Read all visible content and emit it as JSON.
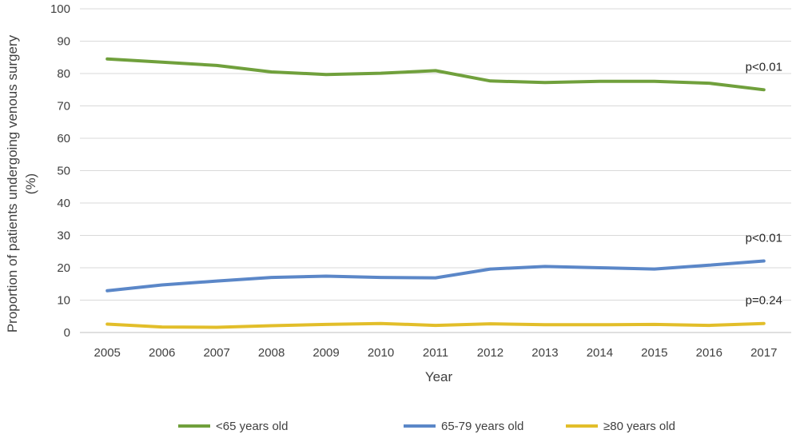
{
  "chart_data": {
    "type": "line",
    "title": "",
    "xlabel": "Year",
    "ylabel": "Proportion of patients undergoing venous surgery (%)",
    "ylabel_lines": [
      "Proportion of patients undergoing venous surgery",
      "(%)"
    ],
    "x": [
      "2005",
      "2006",
      "2007",
      "2008",
      "2009",
      "2010",
      "2011",
      "2012",
      "2013",
      "2014",
      "2015",
      "2016",
      "2017"
    ],
    "ylim": [
      0,
      100
    ],
    "yticks": [
      "0",
      "10",
      "20",
      "30",
      "40",
      "50",
      "60",
      "70",
      "80",
      "90",
      "100"
    ],
    "grid": true,
    "legend_position": "bottom",
    "series": [
      {
        "name": "<65 years old",
        "color": "#70A03C",
        "values": [
          84.5,
          83.5,
          82.5,
          80.5,
          79.7,
          80.1,
          80.9,
          77.7,
          77.2,
          77.6,
          77.6,
          77.0,
          75.0
        ],
        "annotation": "p<0.01"
      },
      {
        "name": "65-79 years old",
        "color": "#5B87C8",
        "values": [
          12.9,
          14.7,
          15.9,
          17.0,
          17.4,
          17.0,
          16.9,
          19.6,
          20.4,
          20.0,
          19.6,
          20.8,
          22.1
        ],
        "annotation": "p<0.01"
      },
      {
        "name": "≥80 years old",
        "color": "#E2BE2A",
        "values": [
          2.6,
          1.7,
          1.6,
          2.1,
          2.5,
          2.8,
          2.2,
          2.7,
          2.4,
          2.4,
          2.5,
          2.2,
          2.8
        ],
        "annotation": "p=0.24"
      }
    ]
  }
}
